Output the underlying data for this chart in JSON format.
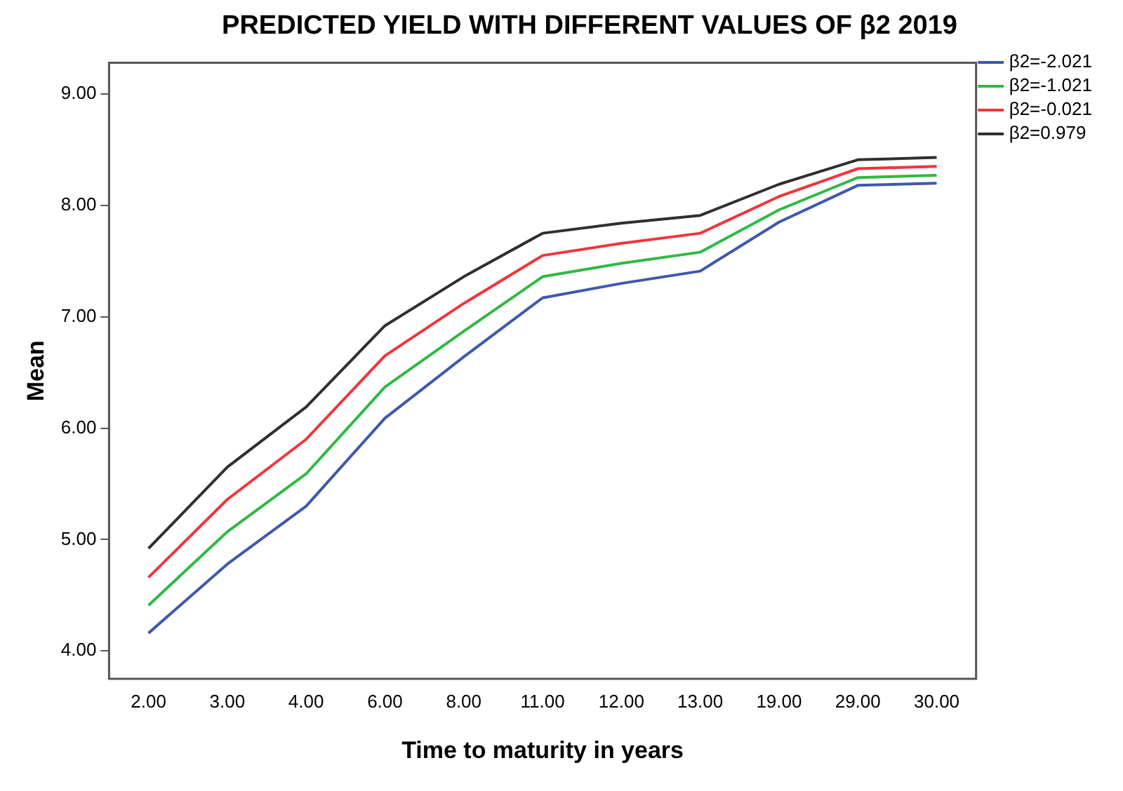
{
  "chart_data": {
    "type": "line",
    "title": "PREDICTED YIELD WITH DIFFERENT VALUES OF β2 2019",
    "xlabel": "Time to maturity in years",
    "ylabel": "Mean",
    "categories": [
      "2.00",
      "3.00",
      "4.00",
      "6.00",
      "8.00",
      "11.00",
      "12.00",
      "13.00",
      "19.00",
      "29.00",
      "30.00"
    ],
    "series": [
      {
        "name": "β2=-2.021",
        "color": "#3e58ac",
        "values": [
          4.16,
          4.78,
          5.3,
          6.09,
          6.64,
          7.17,
          7.3,
          7.41,
          7.85,
          8.18,
          8.2
        ]
      },
      {
        "name": "β2=-1.021",
        "color": "#30b845",
        "values": [
          4.41,
          5.07,
          5.59,
          6.37,
          6.87,
          7.36,
          7.48,
          7.58,
          7.96,
          8.25,
          8.27
        ]
      },
      {
        "name": "β2=-0.021",
        "color": "#f0353d",
        "values": [
          4.66,
          5.36,
          5.9,
          6.65,
          7.12,
          7.55,
          7.66,
          7.75,
          8.08,
          8.33,
          8.35
        ]
      },
      {
        "name": "β2=0.979",
        "color": "#2f2f2f",
        "values": [
          4.92,
          5.65,
          6.19,
          6.92,
          7.36,
          7.75,
          7.84,
          7.91,
          8.19,
          8.41,
          8.43
        ]
      }
    ],
    "ylim": [
      3.75,
      9.28
    ],
    "yticks": [
      {
        "value": 4,
        "label": "4.00"
      },
      {
        "value": 5,
        "label": "5.00"
      },
      {
        "value": 6,
        "label": "6.00"
      },
      {
        "value": 7,
        "label": "7.00"
      },
      {
        "value": 8,
        "label": "8.00"
      },
      {
        "value": 9,
        "label": "9.00"
      }
    ],
    "grid": false,
    "legend": "top right",
    "marker": "none",
    "line_style": "solid"
  }
}
